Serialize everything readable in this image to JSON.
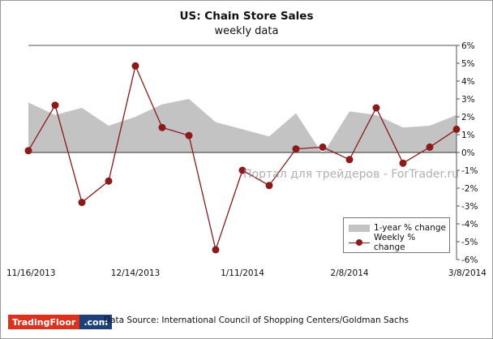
{
  "header": {
    "title": "US: Chain Store Sales",
    "subtitle": "weekly data"
  },
  "watermark": "Портал для трейдеров - ForTrader.ru",
  "legend_items": {
    "area": "1-year % change",
    "line": "Weekly % change"
  },
  "footer": {
    "logo_part1": "TradingFloor",
    "logo_part2": ".com",
    "source": "Data Source: International Council of Shopping Centers/Goldman Sachs"
  },
  "colors": {
    "area": "#c3c3c3",
    "line": "#8b1a1a"
  },
  "chart_data": {
    "type": "line",
    "title": "US: Chain Store Sales",
    "subtitle": "weekly data",
    "ylim": [
      -6,
      6
    ],
    "y_ticks": [
      "6%",
      "5%",
      "4%",
      "3%",
      "2%",
      "1%",
      "0%",
      "-1%",
      "-2%",
      "-3%",
      "-4%",
      "-5%",
      "-6%"
    ],
    "x_tick_labels": [
      "11/16/2013",
      "12/14/2013",
      "1/11/2014",
      "2/8/2014",
      "3/8/2014"
    ],
    "x": [
      "11/16/2013",
      "11/23/2013",
      "11/30/2013",
      "12/7/2013",
      "12/14/2013",
      "12/21/2013",
      "12/28/2013",
      "1/4/2014",
      "1/11/2014",
      "1/18/2014",
      "1/25/2014",
      "2/1/2014",
      "2/8/2014",
      "2/15/2014",
      "2/22/2014",
      "3/1/2014",
      "3/8/2014"
    ],
    "grid": false,
    "legend_position": "bottom-right",
    "series": [
      {
        "name": "1-year % change",
        "kind": "area",
        "values": [
          2.8,
          2.1,
          2.5,
          1.5,
          2.0,
          2.7,
          3.0,
          1.7,
          1.3,
          0.9,
          2.2,
          -0.1,
          2.3,
          2.1,
          1.4,
          1.5,
          2.1
        ]
      },
      {
        "name": "Weekly % change",
        "kind": "line",
        "values": [
          0.1,
          2.65,
          -2.8,
          -1.6,
          4.85,
          1.4,
          0.95,
          -5.45,
          -1.0,
          -1.85,
          0.2,
          0.3,
          -0.4,
          2.5,
          -0.6,
          0.3,
          1.3
        ]
      }
    ]
  }
}
